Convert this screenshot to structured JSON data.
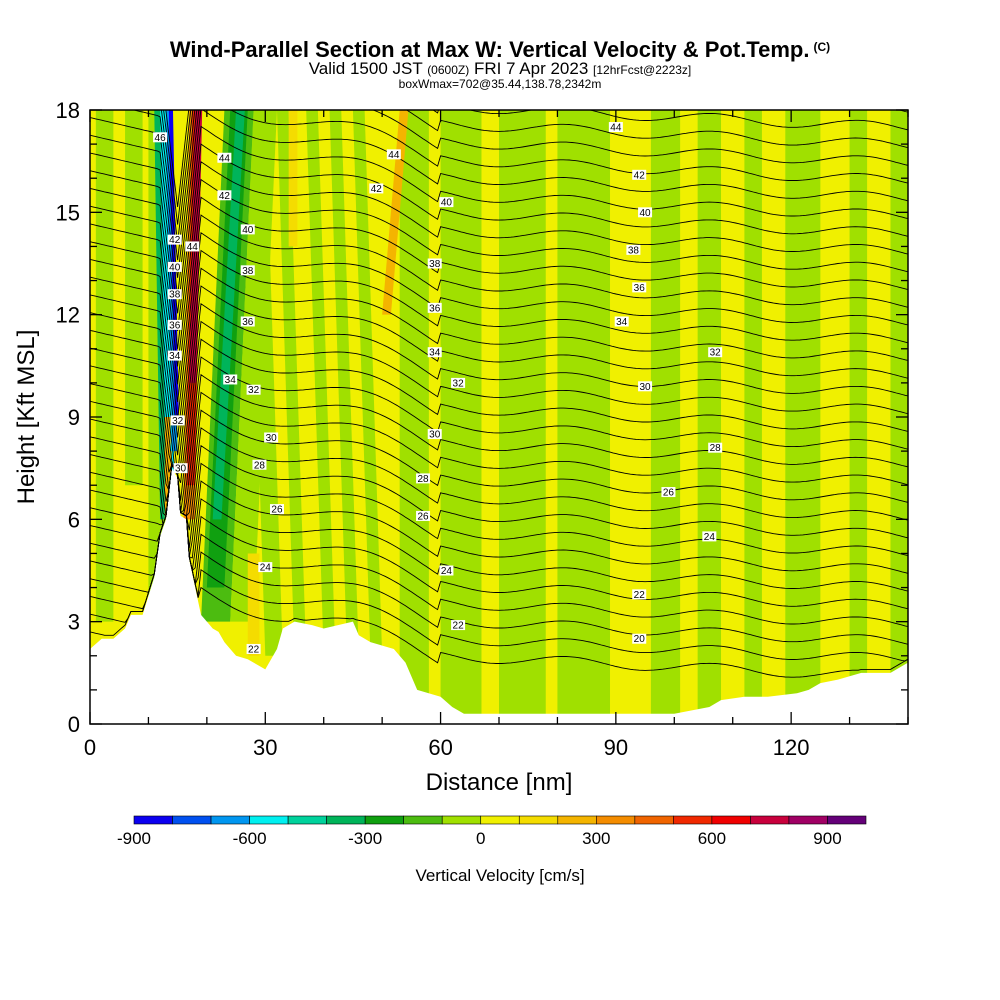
{
  "header": {
    "title": "Wind-Parallel Section at Max W: Vertical Velocity & Pot.Temp.",
    "copyright": "(C)",
    "valid_prefix": "Valid 1500 JST",
    "valid_utc": "(0600Z)",
    "valid_date": "FRI 7 Apr 2023",
    "forecast": "[12hrFcst@2223z]",
    "box_info": "boxWmax=702@35.44,138.78,2342m"
  },
  "chart_data": {
    "type": "heatmap",
    "xlabel": "Distance [nm]",
    "ylabel": "Height [Kft MSL]",
    "xlim": [
      0,
      140
    ],
    "ylim": [
      0,
      18
    ],
    "x_ticks": [
      0,
      30,
      60,
      90,
      120
    ],
    "y_ticks": [
      0,
      3,
      6,
      9,
      12,
      15,
      18
    ],
    "colorbar": {
      "label": "Vertical Velocity [cm/s]",
      "levels": [
        -900,
        -800,
        -700,
        -600,
        -500,
        -400,
        -300,
        -200,
        -100,
        0,
        100,
        200,
        300,
        400,
        500,
        600,
        700,
        800,
        900,
        1000
      ],
      "tick_labels": [
        "-900",
        "-600",
        "-300",
        "0",
        "300",
        "600",
        "900"
      ],
      "colors": [
        "#0b00f0",
        "#0050f0",
        "#0096f0",
        "#00f0f0",
        "#00d29c",
        "#00b45a",
        "#10a010",
        "#4cbc10",
        "#a0e000",
        "#f0f000",
        "#f4dc00",
        "#f4b400",
        "#f48c00",
        "#f06400",
        "#f02800",
        "#f00000",
        "#c8003c",
        "#a00064",
        "#640078"
      ]
    },
    "terrain_kft": [
      [
        0,
        2.2
      ],
      [
        2,
        2.5
      ],
      [
        4,
        2.5
      ],
      [
        6,
        2.8
      ],
      [
        7,
        3.2
      ],
      [
        9,
        3.2
      ],
      [
        11,
        4.3
      ],
      [
        12,
        5.5
      ],
      [
        13,
        6.0
      ],
      [
        14,
        7.5
      ],
      [
        15,
        7.2
      ],
      [
        15.5,
        6.1
      ],
      [
        16.5,
        6.0
      ],
      [
        17,
        4.8
      ],
      [
        18,
        4.0
      ],
      [
        19,
        3.2
      ],
      [
        20,
        3.0
      ],
      [
        21,
        2.8
      ],
      [
        22,
        2.7
      ],
      [
        23,
        2.4
      ],
      [
        24,
        2.2
      ],
      [
        25,
        2.0
      ],
      [
        27,
        1.9
      ],
      [
        28,
        1.8
      ],
      [
        30,
        1.6
      ],
      [
        32,
        2.2
      ],
      [
        33,
        2.8
      ],
      [
        35,
        3.0
      ],
      [
        38,
        2.9
      ],
      [
        40,
        2.8
      ],
      [
        45,
        3.0
      ],
      [
        46,
        2.6
      ],
      [
        48,
        2.4
      ],
      [
        52,
        2.2
      ],
      [
        54,
        1.8
      ],
      [
        56,
        1.0
      ],
      [
        60,
        0.8
      ],
      [
        62,
        0.5
      ],
      [
        64,
        0.3
      ],
      [
        68,
        0.3
      ],
      [
        100,
        0.3
      ],
      [
        106,
        0.5
      ],
      [
        108,
        0.7
      ],
      [
        112,
        0.8
      ],
      [
        116,
        0.8
      ],
      [
        121,
        0.9
      ],
      [
        123,
        1.0
      ],
      [
        125,
        1.2
      ],
      [
        128,
        1.3
      ],
      [
        130,
        1.4
      ],
      [
        132,
        1.5
      ],
      [
        137,
        1.5
      ],
      [
        140,
        1.8
      ]
    ],
    "theta_contours_K": [
      20,
      22,
      24,
      26,
      28,
      30,
      32,
      34,
      36,
      38,
      40,
      42,
      44,
      46
    ],
    "theta_labels": [
      {
        "text": "46",
        "x": 12,
        "y": 17.2
      },
      {
        "text": "44",
        "x": 23,
        "y": 16.6
      },
      {
        "text": "42",
        "x": 23,
        "y": 15.5
      },
      {
        "text": "40",
        "x": 27,
        "y": 14.5
      },
      {
        "text": "38",
        "x": 27,
        "y": 13.3
      },
      {
        "text": "36",
        "x": 27,
        "y": 11.8
      },
      {
        "text": "34",
        "x": 24,
        "y": 10.1
      },
      {
        "text": "32",
        "x": 28,
        "y": 9.8
      },
      {
        "text": "30",
        "x": 31,
        "y": 8.4
      },
      {
        "text": "28",
        "x": 29,
        "y": 7.6
      },
      {
        "text": "26",
        "x": 32,
        "y": 6.3
      },
      {
        "text": "24",
        "x": 30,
        "y": 4.6
      },
      {
        "text": "22",
        "x": 28,
        "y": 2.2
      },
      {
        "text": "42",
        "x": 14.5,
        "y": 14.2
      },
      {
        "text": "44",
        "x": 17.5,
        "y": 14.0
      },
      {
        "text": "40",
        "x": 14.5,
        "y": 13.4
      },
      {
        "text": "38",
        "x": 14.5,
        "y": 12.6
      },
      {
        "text": "36",
        "x": 14.5,
        "y": 11.7
      },
      {
        "text": "34",
        "x": 14.5,
        "y": 10.8
      },
      {
        "text": "32",
        "x": 15,
        "y": 8.9
      },
      {
        "text": "30",
        "x": 15.5,
        "y": 7.5
      },
      {
        "text": "44",
        "x": 52,
        "y": 16.7
      },
      {
        "text": "42",
        "x": 49,
        "y": 15.7
      },
      {
        "text": "40",
        "x": 61,
        "y": 15.3
      },
      {
        "text": "38",
        "x": 59,
        "y": 13.5
      },
      {
        "text": "36",
        "x": 59,
        "y": 12.2
      },
      {
        "text": "34",
        "x": 59,
        "y": 10.9
      },
      {
        "text": "32",
        "x": 63,
        "y": 10.0
      },
      {
        "text": "30",
        "x": 59,
        "y": 8.5
      },
      {
        "text": "28",
        "x": 57,
        "y": 7.2
      },
      {
        "text": "26",
        "x": 57,
        "y": 6.1
      },
      {
        "text": "24",
        "x": 61,
        "y": 4.5
      },
      {
        "text": "22",
        "x": 63,
        "y": 2.9
      },
      {
        "text": "44",
        "x": 90,
        "y": 17.5
      },
      {
        "text": "42",
        "x": 94,
        "y": 16.1
      },
      {
        "text": "40",
        "x": 95,
        "y": 15.0
      },
      {
        "text": "38",
        "x": 93,
        "y": 13.9
      },
      {
        "text": "36",
        "x": 94,
        "y": 12.8
      },
      {
        "text": "34",
        "x": 91,
        "y": 11.8
      },
      {
        "text": "32",
        "x": 107,
        "y": 10.9
      },
      {
        "text": "30",
        "x": 95,
        "y": 9.9
      },
      {
        "text": "28",
        "x": 107,
        "y": 8.1
      },
      {
        "text": "26",
        "x": 99,
        "y": 6.8
      },
      {
        "text": "24",
        "x": 106,
        "y": 5.5
      },
      {
        "text": "22",
        "x": 94,
        "y": 3.8
      },
      {
        "text": "20",
        "x": 94,
        "y": 2.5
      }
    ]
  }
}
